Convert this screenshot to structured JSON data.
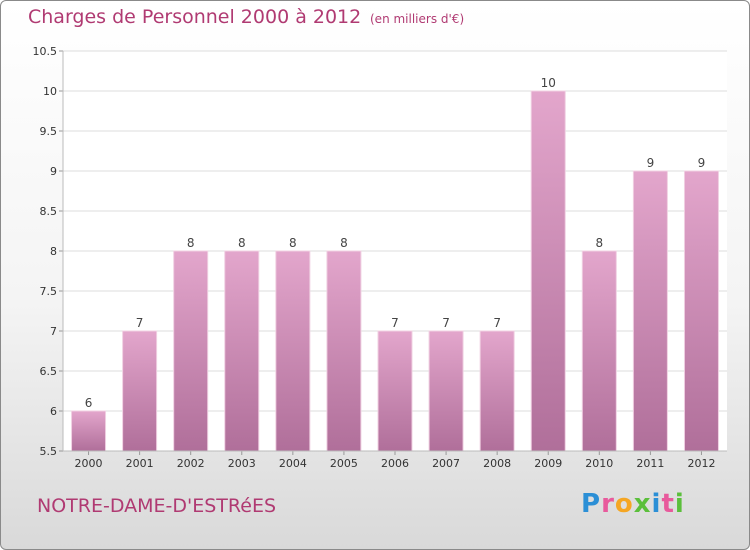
{
  "header": {
    "title": "Charges de Personnel 2000 à 2012",
    "unit": "(en milliers d'€)"
  },
  "footer": {
    "commune": "NOTRE-DAME-D'ESTRéES",
    "brand": [
      "P",
      "r",
      "o",
      "x",
      "i",
      "t",
      "i"
    ]
  },
  "colors": {
    "accent": "#b03a72",
    "bar_top": "#e3a6cc",
    "bar_bottom": "#b06f9a"
  },
  "chart_data": {
    "type": "bar",
    "categories": [
      "2000",
      "2001",
      "2002",
      "2003",
      "2004",
      "2005",
      "2006",
      "2007",
      "2008",
      "2009",
      "2010",
      "2011",
      "2012"
    ],
    "values": [
      6,
      7,
      8,
      8,
      8,
      8,
      7,
      7,
      7,
      10,
      8,
      9,
      9
    ],
    "value_labels": [
      "6",
      "7",
      "8",
      "8",
      "8",
      "8",
      "7",
      "7",
      "7",
      "10",
      "8",
      "9",
      "9"
    ],
    "yticks": [
      "5.5",
      "6",
      "6.5",
      "7",
      "7.5",
      "8",
      "8.5",
      "9",
      "9.5",
      "10",
      "10.5"
    ],
    "ylim": [
      5.5,
      10.5
    ],
    "grid": true
  }
}
